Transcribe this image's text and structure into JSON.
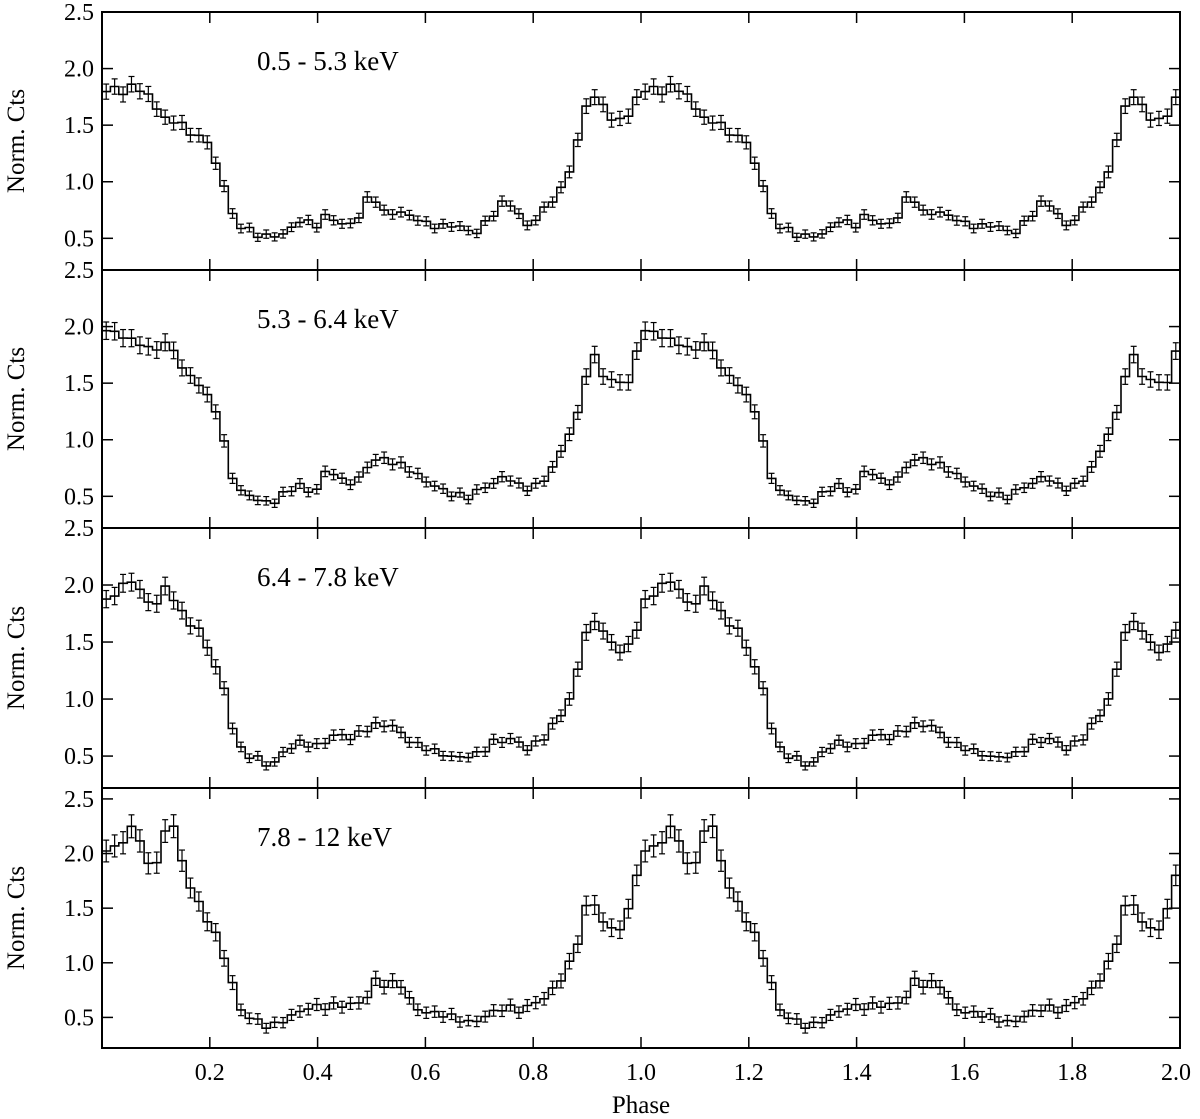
{
  "chart_data": {
    "type": "line",
    "style": "step histogram with error bars, four stacked panels sharing the x axis",
    "xlabel": "Phase",
    "xlim": [
      0,
      2.0
    ],
    "x_ticks": [
      0.2,
      0.4,
      0.6,
      0.8,
      1.0,
      1.2,
      1.4,
      1.6,
      1.8,
      2.0
    ],
    "x_tick_labels": [
      "0.2",
      "0.4",
      "0.6",
      "0.8",
      "1.0",
      "1.2",
      "1.4",
      "1.6",
      "1.8",
      "2.0"
    ],
    "bins_per_cycle": 64,
    "repeat_cycles": 2,
    "panels": [
      {
        "label": "0.5 - 5.3 keV",
        "ylabel": "Norm. Cts",
        "ylim": [
          0.22,
          2.5
        ],
        "y_ticks": [
          0.5,
          1.0,
          1.5,
          2.0,
          2.5
        ],
        "y_tick_labels": [
          "0.5",
          "1.0",
          "1.5",
          "2.0",
          "2.5"
        ],
        "anchors": [
          [
            0,
            1.75
          ],
          [
            0.02,
            1.83
          ],
          [
            0.04,
            1.8
          ],
          [
            0.06,
            1.87
          ],
          [
            0.08,
            1.78
          ],
          [
            0.1,
            1.65
          ],
          [
            0.13,
            1.52
          ],
          [
            0.15,
            1.55
          ],
          [
            0.16,
            1.35
          ],
          [
            0.175,
            1.45
          ],
          [
            0.2,
            1.3
          ],
          [
            0.22,
            1.1
          ],
          [
            0.235,
            0.8
          ],
          [
            0.25,
            0.6
          ],
          [
            0.3,
            0.53
          ],
          [
            0.34,
            0.52
          ],
          [
            0.37,
            0.68
          ],
          [
            0.4,
            0.62
          ],
          [
            0.42,
            0.7
          ],
          [
            0.44,
            0.62
          ],
          [
            0.47,
            0.65
          ],
          [
            0.5,
            0.9
          ],
          [
            0.52,
            0.72
          ],
          [
            0.55,
            0.75
          ],
          [
            0.6,
            0.62
          ],
          [
            0.65,
            0.62
          ],
          [
            0.69,
            0.53
          ],
          [
            0.72,
            0.7
          ],
          [
            0.75,
            0.83
          ],
          [
            0.79,
            0.62
          ],
          [
            0.82,
            0.75
          ],
          [
            0.85,
            0.9
          ],
          [
            0.87,
            1.15
          ],
          [
            0.89,
            1.5
          ],
          [
            0.905,
            1.8
          ],
          [
            0.93,
            1.65
          ],
          [
            0.95,
            1.55
          ],
          [
            0.97,
            1.55
          ],
          [
            0.99,
            1.72
          ],
          [
            1.0,
            1.75
          ]
        ],
        "errors": 0.05
      },
      {
        "label": "5.3 - 6.4 keV",
        "ylabel": "Norm. Cts",
        "ylim": [
          0.22,
          2.5
        ],
        "y_ticks": [
          0.5,
          1.0,
          1.5,
          2.0,
          2.5
        ],
        "y_tick_labels": [
          "0.5",
          "1.0",
          "1.5",
          "2.0",
          "2.5"
        ],
        "anchors": [
          [
            0,
            1.9
          ],
          [
            0.02,
            1.98
          ],
          [
            0.04,
            1.88
          ],
          [
            0.06,
            1.92
          ],
          [
            0.08,
            1.8
          ],
          [
            0.1,
            1.8
          ],
          [
            0.13,
            1.85
          ],
          [
            0.15,
            1.62
          ],
          [
            0.17,
            1.55
          ],
          [
            0.19,
            1.4
          ],
          [
            0.215,
            1.25
          ],
          [
            0.23,
            0.9
          ],
          [
            0.25,
            0.55
          ],
          [
            0.28,
            0.48
          ],
          [
            0.31,
            0.45
          ],
          [
            0.34,
            0.52
          ],
          [
            0.37,
            0.6
          ],
          [
            0.39,
            0.52
          ],
          [
            0.42,
            0.75
          ],
          [
            0.45,
            0.6
          ],
          [
            0.48,
            0.68
          ],
          [
            0.5,
            0.82
          ],
          [
            0.55,
            0.8
          ],
          [
            0.57,
            0.75
          ],
          [
            0.6,
            0.62
          ],
          [
            0.64,
            0.55
          ],
          [
            0.68,
            0.48
          ],
          [
            0.72,
            0.62
          ],
          [
            0.75,
            0.68
          ],
          [
            0.78,
            0.55
          ],
          [
            0.82,
            0.65
          ],
          [
            0.85,
            0.85
          ],
          [
            0.87,
            1.1
          ],
          [
            0.89,
            1.3
          ],
          [
            0.9,
            1.65
          ],
          [
            0.91,
            1.78
          ],
          [
            0.93,
            1.55
          ],
          [
            0.96,
            1.5
          ],
          [
            0.98,
            1.55
          ],
          [
            1.0,
            1.9
          ]
        ],
        "errors": 0.055
      },
      {
        "label": "6.4 - 7.8 keV",
        "ylabel": "Norm. Cts",
        "ylim": [
          0.22,
          2.5
        ],
        "y_ticks": [
          0.5,
          1.0,
          1.5,
          2.0,
          2.5
        ],
        "y_tick_labels": [
          "0.5",
          "1.0",
          "1.5",
          "2.0",
          "2.5"
        ],
        "anchors": [
          [
            0,
            1.85
          ],
          [
            0.02,
            1.9
          ],
          [
            0.04,
            1.98
          ],
          [
            0.055,
            2.05
          ],
          [
            0.08,
            1.9
          ],
          [
            0.1,
            1.8
          ],
          [
            0.11,
            2.0
          ],
          [
            0.13,
            1.9
          ],
          [
            0.15,
            1.75
          ],
          [
            0.18,
            1.6
          ],
          [
            0.2,
            1.4
          ],
          [
            0.23,
            1.05
          ],
          [
            0.25,
            0.6
          ],
          [
            0.27,
            0.5
          ],
          [
            0.3,
            0.45
          ],
          [
            0.31,
            0.4
          ],
          [
            0.33,
            0.52
          ],
          [
            0.36,
            0.6
          ],
          [
            0.4,
            0.6
          ],
          [
            0.43,
            0.68
          ],
          [
            0.46,
            0.65
          ],
          [
            0.5,
            0.78
          ],
          [
            0.54,
            0.75
          ],
          [
            0.58,
            0.62
          ],
          [
            0.62,
            0.52
          ],
          [
            0.66,
            0.5
          ],
          [
            0.7,
            0.5
          ],
          [
            0.73,
            0.65
          ],
          [
            0.76,
            0.65
          ],
          [
            0.79,
            0.55
          ],
          [
            0.82,
            0.68
          ],
          [
            0.85,
            0.85
          ],
          [
            0.87,
            1.0
          ],
          [
            0.89,
            1.4
          ],
          [
            0.9,
            1.65
          ],
          [
            0.92,
            1.68
          ],
          [
            0.94,
            1.55
          ],
          [
            0.95,
            1.38
          ],
          [
            0.97,
            1.45
          ],
          [
            0.99,
            1.55
          ],
          [
            1.0,
            1.85
          ]
        ],
        "errors": 0.055
      },
      {
        "label": "7.8 - 12 keV",
        "ylabel": "Norm. Cts",
        "ylim": [
          0.22,
          2.6
        ],
        "y_ticks": [
          0.5,
          1.0,
          1.5,
          2.0,
          2.5
        ],
        "y_tick_labels": [
          "0.5",
          "1.0",
          "1.5",
          "2.0",
          "2.5"
        ],
        "anchors": [
          [
            0,
            2.05
          ],
          [
            0.03,
            2.07
          ],
          [
            0.05,
            2.1
          ],
          [
            0.06,
            2.42
          ],
          [
            0.075,
            1.95
          ],
          [
            0.09,
            1.95
          ],
          [
            0.1,
            1.85
          ],
          [
            0.11,
            2.18
          ],
          [
            0.13,
            2.28
          ],
          [
            0.15,
            1.9
          ],
          [
            0.16,
            1.75
          ],
          [
            0.18,
            1.55
          ],
          [
            0.2,
            1.35
          ],
          [
            0.22,
            1.15
          ],
          [
            0.24,
            0.85
          ],
          [
            0.26,
            0.55
          ],
          [
            0.29,
            0.45
          ],
          [
            0.31,
            0.4
          ],
          [
            0.34,
            0.5
          ],
          [
            0.37,
            0.55
          ],
          [
            0.4,
            0.6
          ],
          [
            0.43,
            0.62
          ],
          [
            0.46,
            0.6
          ],
          [
            0.49,
            0.65
          ],
          [
            0.5,
            0.88
          ],
          [
            0.53,
            0.78
          ],
          [
            0.55,
            0.82
          ],
          [
            0.58,
            0.6
          ],
          [
            0.62,
            0.52
          ],
          [
            0.66,
            0.5
          ],
          [
            0.69,
            0.45
          ],
          [
            0.72,
            0.52
          ],
          [
            0.75,
            0.62
          ],
          [
            0.78,
            0.55
          ],
          [
            0.82,
            0.68
          ],
          [
            0.85,
            0.85
          ],
          [
            0.87,
            1.0
          ],
          [
            0.89,
            1.28
          ],
          [
            0.9,
            1.55
          ],
          [
            0.92,
            1.55
          ],
          [
            0.935,
            1.3
          ],
          [
            0.96,
            1.3
          ],
          [
            0.98,
            1.5
          ],
          [
            1.0,
            2.05
          ]
        ],
        "errors": 0.07
      }
    ]
  }
}
